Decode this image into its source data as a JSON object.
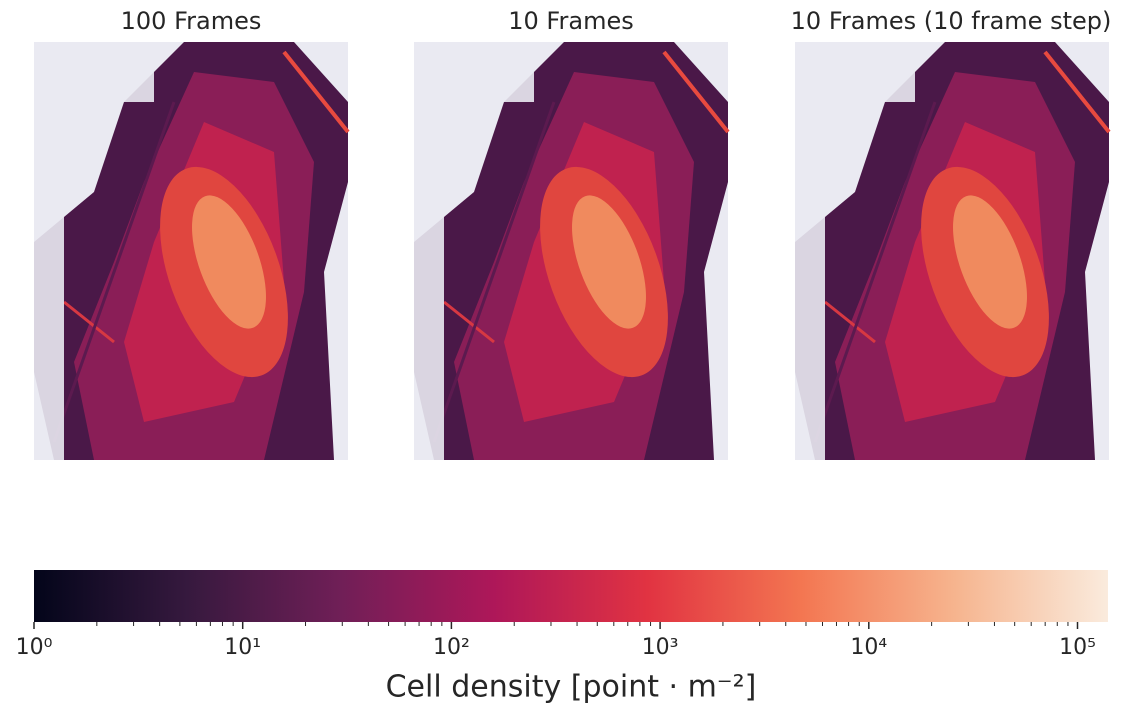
{
  "chart_data": {
    "type": "heatmap",
    "panels": [
      {
        "title": "100 Frames"
      },
      {
        "title": "10 Frames"
      },
      {
        "title": "10 Frames (10 frame step)"
      }
    ],
    "colorbar": {
      "label": "Cell density [point · m⁻²]",
      "log_scale": true,
      "xlim": [
        1,
        140000
      ],
      "xticks": [
        {
          "value": 1,
          "label": "10⁰"
        },
        {
          "value": 10,
          "label": "10¹"
        },
        {
          "value": 100,
          "label": "10²"
        },
        {
          "value": 1000,
          "label": "10³"
        },
        {
          "value": 10000,
          "label": "10⁴"
        },
        {
          "value": 100000,
          "label": "10⁵"
        }
      ],
      "xminor_ticks": [
        2,
        3,
        4,
        5,
        6,
        7,
        8,
        9,
        20,
        30,
        40,
        50,
        60,
        70,
        80,
        90,
        200,
        300,
        400,
        500,
        600,
        700,
        800,
        900,
        2000,
        3000,
        4000,
        5000,
        6000,
        7000,
        8000,
        9000,
        20000,
        30000,
        40000,
        50000,
        60000,
        70000,
        80000,
        90000
      ],
      "colormap_colors": [
        "#03051a",
        "#36193e",
        "#701f57",
        "#ae1759",
        "#e13342",
        "#f37651",
        "#f6b48e",
        "#faebdd"
      ]
    }
  }
}
